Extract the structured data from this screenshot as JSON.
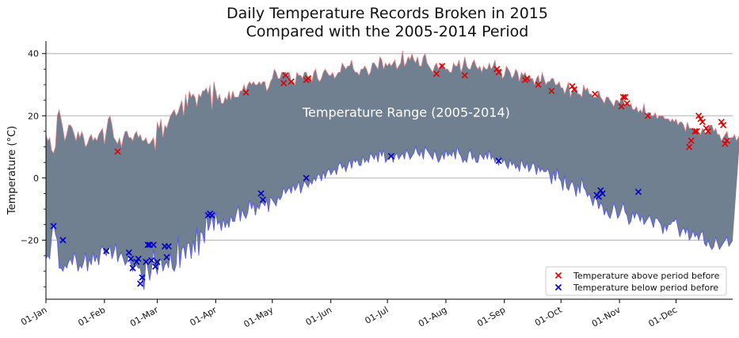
{
  "chart_data": {
    "type": "area",
    "title_line1": "Daily Temperature Records Broken in 2015",
    "title_line2": "Compared with the 2005-2014 Period",
    "ylabel": "Temperature (°C)",
    "ylim": [
      -39,
      44
    ],
    "yticks": [
      -20,
      0,
      20,
      40
    ],
    "grid": "horizontal",
    "xlim": [
      1,
      365
    ],
    "xticks": [
      {
        "day": 1,
        "label": "01-Jan"
      },
      {
        "day": 32,
        "label": "01-Feb"
      },
      {
        "day": 60,
        "label": "01-Mar"
      },
      {
        "day": 91,
        "label": "01-Apr"
      },
      {
        "day": 121,
        "label": "01-May"
      },
      {
        "day": 152,
        "label": "01-Jun"
      },
      {
        "day": 182,
        "label": "01-Jul"
      },
      {
        "day": 213,
        "label": "01-Aug"
      },
      {
        "day": 244,
        "label": "01-Sep"
      },
      {
        "day": 274,
        "label": "01-Oct"
      },
      {
        "day": 305,
        "label": "01-Nov"
      },
      {
        "day": 335,
        "label": "01-Dec"
      }
    ],
    "band_label": "Temperature Range (2005-2014)",
    "band_label_position": {
      "day": 192,
      "temp": 21
    },
    "band_color": "#708090",
    "band_upper_color": "#ff8080",
    "band_lower_color": "#4040ff",
    "band_upper": [
      14,
      12,
      13,
      9,
      8,
      10,
      20,
      22,
      19,
      16,
      12,
      14,
      17,
      17,
      16,
      14,
      12,
      15,
      13,
      15,
      13,
      10,
      11,
      13,
      14,
      12,
      13,
      12,
      14,
      15,
      16,
      11,
      15,
      19,
      20,
      17,
      13,
      12,
      11,
      13,
      10,
      13,
      15,
      15,
      13,
      13,
      12,
      14,
      15,
      13,
      14,
      12,
      12,
      13,
      11,
      11,
      12,
      13,
      9,
      18,
      16,
      19,
      13,
      17,
      16,
      18,
      20,
      21,
      22,
      20,
      21,
      23,
      25,
      20,
      27,
      23,
      28,
      26,
      27,
      26,
      23,
      27,
      26,
      28,
      28,
      29,
      27,
      30,
      22,
      31,
      28,
      25,
      27,
      24,
      24,
      26,
      25,
      28,
      25,
      28,
      26,
      26,
      26,
      28,
      28,
      30,
      28,
      30,
      31,
      30,
      31,
      30,
      30,
      31,
      30,
      31,
      31,
      28,
      29,
      31,
      32,
      35,
      34,
      32,
      32,
      34,
      34,
      34,
      33,
      34,
      31,
      31,
      30,
      34,
      33,
      33,
      32,
      34,
      34,
      32,
      33,
      31,
      34,
      35,
      32,
      31,
      32,
      34,
      35,
      34,
      33,
      33,
      34,
      32,
      33,
      34,
      34,
      37,
      36,
      35,
      36,
      36,
      38,
      35,
      34,
      34,
      33,
      35,
      35,
      36,
      35,
      33,
      34,
      37,
      37,
      36,
      35,
      39,
      38,
      35,
      37,
      36,
      37,
      36,
      37,
      38,
      35,
      36,
      37,
      41,
      36,
      37,
      39,
      38,
      40,
      38,
      37,
      39,
      36,
      36,
      39,
      40,
      37,
      36,
      35,
      34,
      36,
      37,
      35,
      36,
      37,
      35,
      35,
      35,
      34,
      34,
      37,
      36,
      36,
      38,
      34,
      36,
      39,
      36,
      35,
      35,
      37,
      38,
      36,
      35,
      36,
      34,
      36,
      35,
      35,
      37,
      35,
      36,
      38,
      34,
      35,
      35,
      32,
      33,
      36,
      35,
      34,
      32,
      33,
      35,
      34,
      31,
      34,
      33,
      34,
      32,
      33,
      32,
      32,
      30,
      32,
      33,
      30,
      34,
      32,
      30,
      31,
      31,
      32,
      32,
      30,
      30,
      31,
      29,
      29,
      27,
      29,
      31,
      26,
      28,
      28,
      29,
      27,
      27,
      26,
      30,
      28,
      29,
      27,
      27,
      26,
      26,
      26,
      28,
      26,
      25,
      24,
      26,
      26,
      25,
      24,
      23,
      25,
      25,
      24,
      26,
      25,
      23,
      24,
      23,
      24,
      22,
      22,
      23,
      21,
      22,
      21,
      24,
      20,
      21,
      21,
      20,
      20,
      21,
      19,
      20,
      20,
      20,
      19,
      19,
      19,
      18,
      19,
      18,
      19,
      17,
      18,
      18,
      17,
      15,
      18,
      16,
      16,
      16,
      14,
      16,
      14,
      14,
      16,
      15,
      14,
      16,
      17,
      17,
      15,
      16,
      14,
      14,
      12,
      13,
      14,
      15,
      12,
      13,
      13,
      14,
      12,
      13,
      14
    ],
    "band_lower": [
      -26,
      -25,
      -26,
      -19,
      -14,
      -18,
      -20,
      -29,
      -29,
      -30,
      -28,
      -29,
      -27,
      -26,
      -28,
      -24,
      -26,
      -30,
      -28,
      -29,
      -27,
      -24,
      -30,
      -26,
      -28,
      -24,
      -27,
      -25,
      -28,
      -23,
      -22,
      -24,
      -25,
      -23,
      -22,
      -26,
      -24,
      -21,
      -27,
      -25,
      -24,
      -26,
      -28,
      -27,
      -24,
      -28,
      -30,
      -28,
      -28,
      -29,
      -29,
      -33,
      -36,
      -26,
      -29,
      -33,
      -29,
      -23,
      -28,
      -31,
      -27,
      -26,
      -30,
      -28,
      -27,
      -29,
      -24,
      -29,
      -30,
      -28,
      -19,
      -29,
      -23,
      -22,
      -26,
      -21,
      -21,
      -26,
      -20,
      -24,
      -16,
      -25,
      -17,
      -18,
      -21,
      -11,
      -17,
      -15,
      -12,
      -17,
      -11,
      -15,
      -14,
      -17,
      -13,
      -16,
      -14,
      -16,
      -12,
      -14,
      -14,
      -11,
      -9,
      -14,
      -10,
      -12,
      -13,
      -11,
      -7,
      -10,
      -8,
      -12,
      -9,
      -10,
      -8,
      -8,
      -9,
      -7,
      -11,
      -6,
      -7,
      -8,
      -9,
      -6,
      -7,
      -6,
      -3,
      -5,
      -4,
      -3,
      -5,
      -2,
      -4,
      -3,
      -1,
      -5,
      -3,
      -1,
      -2,
      -3,
      -1,
      -2,
      0,
      -1,
      1,
      1,
      -1,
      2,
      0,
      2,
      3,
      1,
      2,
      3,
      1,
      4,
      5,
      3,
      4,
      2,
      4,
      6,
      3,
      6,
      5,
      6,
      4,
      4,
      7,
      5,
      6,
      5,
      8,
      7,
      6,
      8,
      5,
      9,
      7,
      9,
      5,
      6,
      6,
      8,
      5,
      7,
      8,
      6,
      7,
      8,
      6,
      9,
      8,
      6,
      7,
      8,
      10,
      8,
      7,
      9,
      6,
      10,
      9,
      8,
      7,
      6,
      9,
      7,
      5,
      6,
      8,
      6,
      9,
      7,
      8,
      7,
      9,
      6,
      10,
      8,
      7,
      5,
      6,
      5,
      8,
      9,
      6,
      7,
      5,
      5,
      8,
      7,
      6,
      8,
      6,
      9,
      6,
      7,
      5,
      6,
      4,
      7,
      5,
      6,
      4,
      3,
      6,
      4,
      5,
      3,
      4,
      2,
      6,
      4,
      3,
      5,
      2,
      3,
      5,
      4,
      1,
      4,
      2,
      3,
      2,
      2,
      3,
      1,
      -2,
      2,
      -1,
      3,
      0,
      -1,
      -4,
      1,
      -3,
      -4,
      -2,
      -1,
      -3,
      -6,
      -2,
      -5,
      0,
      -3,
      -4,
      -6,
      -5,
      -7,
      -9,
      -6,
      -7,
      -10,
      -8,
      -9,
      -12,
      -10,
      -12,
      -13,
      -11,
      -8,
      -10,
      -13,
      -12,
      -10,
      -8,
      -11,
      -12,
      -15,
      -14,
      -11,
      -13,
      -11,
      -12,
      -14,
      -12,
      -15,
      -14,
      -13,
      -12,
      -14,
      -16,
      -13,
      -13,
      -14,
      -15,
      -18,
      -15,
      -17,
      -15,
      -15,
      -14,
      -14,
      -13,
      -16,
      -19,
      -17,
      -16,
      -18,
      -16,
      -20,
      -19,
      -17,
      -19,
      -18,
      -20,
      -18,
      -17,
      -21,
      -22,
      -20,
      -22,
      -23,
      -22,
      -19,
      -21,
      -23,
      -22,
      -21,
      -20,
      -19,
      -22,
      -21,
      -20
    ],
    "series": [
      {
        "name": "Temperature above period before",
        "color": "#e00000",
        "points": [
          [
            39,
            8.5
          ],
          [
            107,
            27.5
          ],
          [
            127,
            30.5
          ],
          [
            128,
            33
          ],
          [
            131,
            31
          ],
          [
            139,
            31.5
          ],
          [
            140,
            32
          ],
          [
            208,
            33.5
          ],
          [
            211,
            36
          ],
          [
            223,
            33
          ],
          [
            240,
            35
          ],
          [
            241,
            34
          ],
          [
            255,
            31.5
          ],
          [
            256,
            32
          ],
          [
            262,
            30
          ],
          [
            269,
            28
          ],
          [
            280,
            29.5
          ],
          [
            281,
            28.5
          ],
          [
            292,
            27
          ],
          [
            306,
            23
          ],
          [
            307,
            26
          ],
          [
            308,
            26
          ],
          [
            309,
            24
          ],
          [
            320,
            20
          ],
          [
            342,
            10
          ],
          [
            343,
            12
          ],
          [
            345,
            15
          ],
          [
            346,
            15
          ],
          [
            347,
            20
          ],
          [
            348,
            19
          ],
          [
            349,
            18
          ],
          [
            351,
            16
          ],
          [
            352,
            15
          ],
          [
            359,
            18
          ],
          [
            360,
            17
          ],
          [
            361,
            11
          ],
          [
            362,
            12
          ]
        ]
      },
      {
        "name": "Temperature below period before",
        "color": "#0000c0",
        "points": [
          [
            5,
            -15.5
          ],
          [
            10,
            -20
          ],
          [
            33,
            -23.5
          ],
          [
            45,
            -24
          ],
          [
            46,
            -26
          ],
          [
            47,
            -29
          ],
          [
            49,
            -27
          ],
          [
            50,
            -26
          ],
          [
            51,
            -34
          ],
          [
            52,
            -32
          ],
          [
            54,
            -27
          ],
          [
            55,
            -21.5
          ],
          [
            56,
            -21.5
          ],
          [
            57,
            -26.5
          ],
          [
            58,
            -21.5
          ],
          [
            59,
            -28.5
          ],
          [
            60,
            -27
          ],
          [
            64,
            -22
          ],
          [
            65,
            -25.5
          ],
          [
            66,
            -22
          ],
          [
            87,
            -12
          ],
          [
            88,
            -11.5
          ],
          [
            89,
            -12
          ],
          [
            115,
            -5
          ],
          [
            116,
            -7
          ],
          [
            139,
            0
          ],
          [
            184,
            7
          ],
          [
            241,
            5.5
          ],
          [
            293,
            -5.5
          ],
          [
            294,
            -6
          ],
          [
            295,
            -4
          ],
          [
            296,
            -5
          ],
          [
            315,
            -4.5
          ]
        ]
      }
    ],
    "legend_position": "lower-right"
  }
}
